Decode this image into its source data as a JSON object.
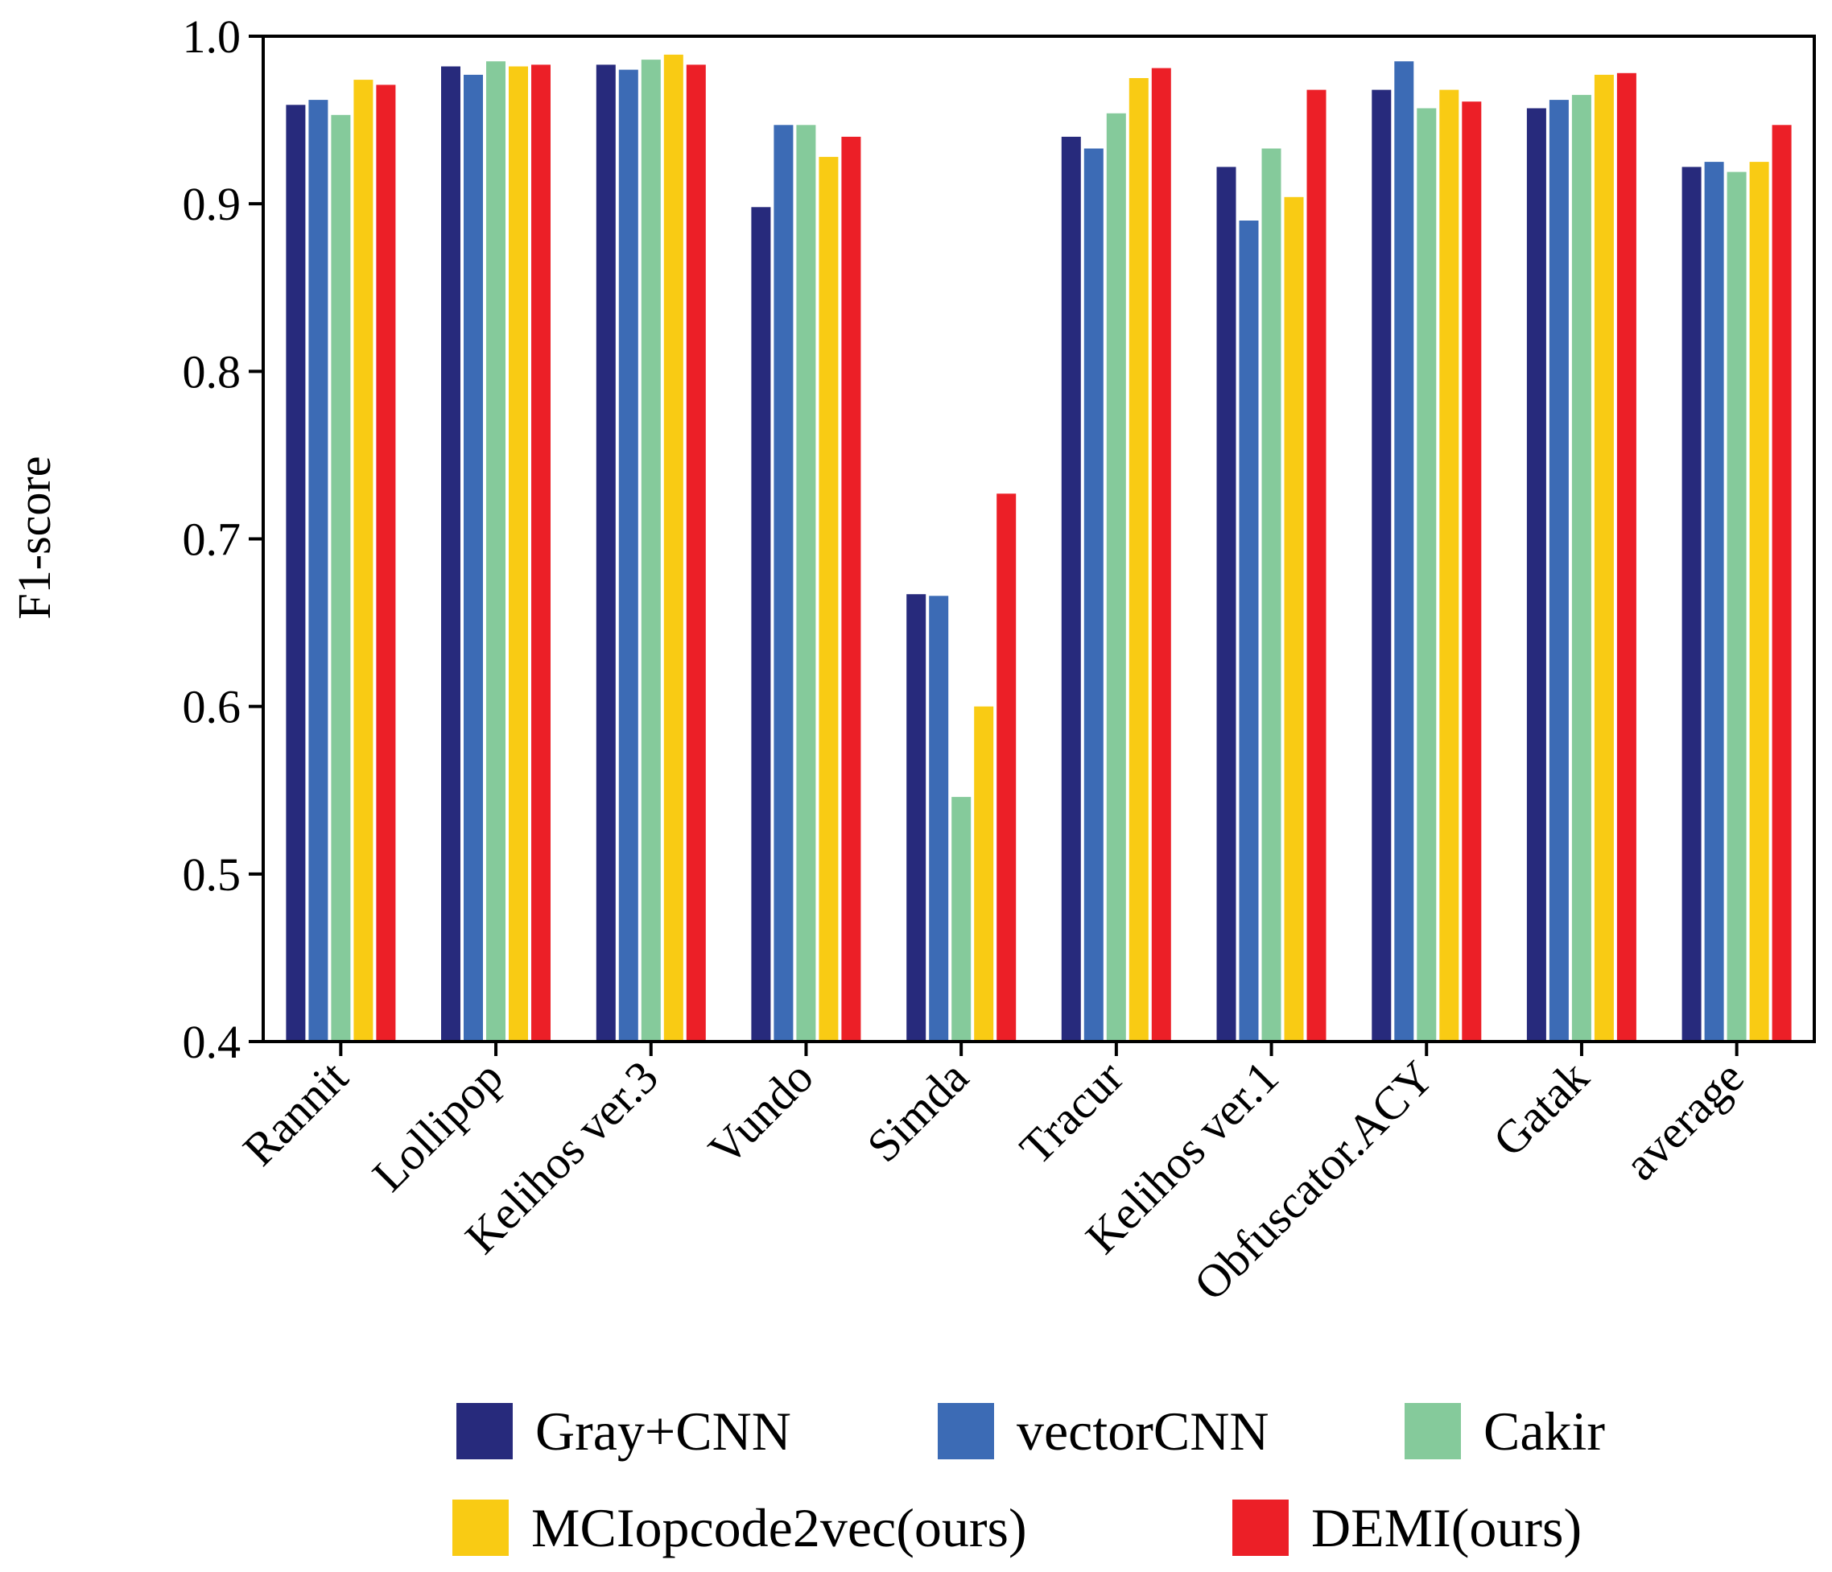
{
  "chart_data": {
    "type": "bar",
    "title": "",
    "xlabel": "",
    "ylabel": "F1-score",
    "ylim": [
      0.4,
      1.0
    ],
    "yticks": [
      "0.4",
      "0.5",
      "0.6",
      "0.7",
      "0.8",
      "0.9",
      "1.0"
    ],
    "categories": [
      "Rannit",
      "Lollipop",
      "Kelihos ver.3",
      "Vundo",
      "Simda",
      "Tracur",
      "Kelihos ver.1",
      "Obfuscator.ACY",
      "Gatak",
      "average"
    ],
    "legend_position": "bottom",
    "series": [
      {
        "name": "Gray+CNN",
        "color": "#272a7c",
        "values": [
          0.959,
          0.982,
          0.983,
          0.898,
          0.667,
          0.94,
          0.922,
          0.968,
          0.957,
          0.922
        ]
      },
      {
        "name": "vectorCNN",
        "color": "#3c6bb5",
        "values": [
          0.962,
          0.977,
          0.98,
          0.947,
          0.666,
          0.933,
          0.89,
          0.985,
          0.962,
          0.925
        ]
      },
      {
        "name": "Cakir",
        "color": "#85ca9b",
        "values": [
          0.953,
          0.985,
          0.986,
          0.947,
          0.546,
          0.954,
          0.933,
          0.957,
          0.965,
          0.919
        ]
      },
      {
        "name": "MCIopcode2vec(ours)",
        "color": "#f9cb14",
        "values": [
          0.974,
          0.982,
          0.989,
          0.928,
          0.6,
          0.975,
          0.904,
          0.968,
          0.977,
          0.925
        ]
      },
      {
        "name": "DEMI(ours)",
        "color": "#ec1f27",
        "values": [
          0.971,
          0.983,
          0.983,
          0.94,
          0.727,
          0.981,
          0.968,
          0.961,
          0.978,
          0.947
        ]
      }
    ]
  }
}
